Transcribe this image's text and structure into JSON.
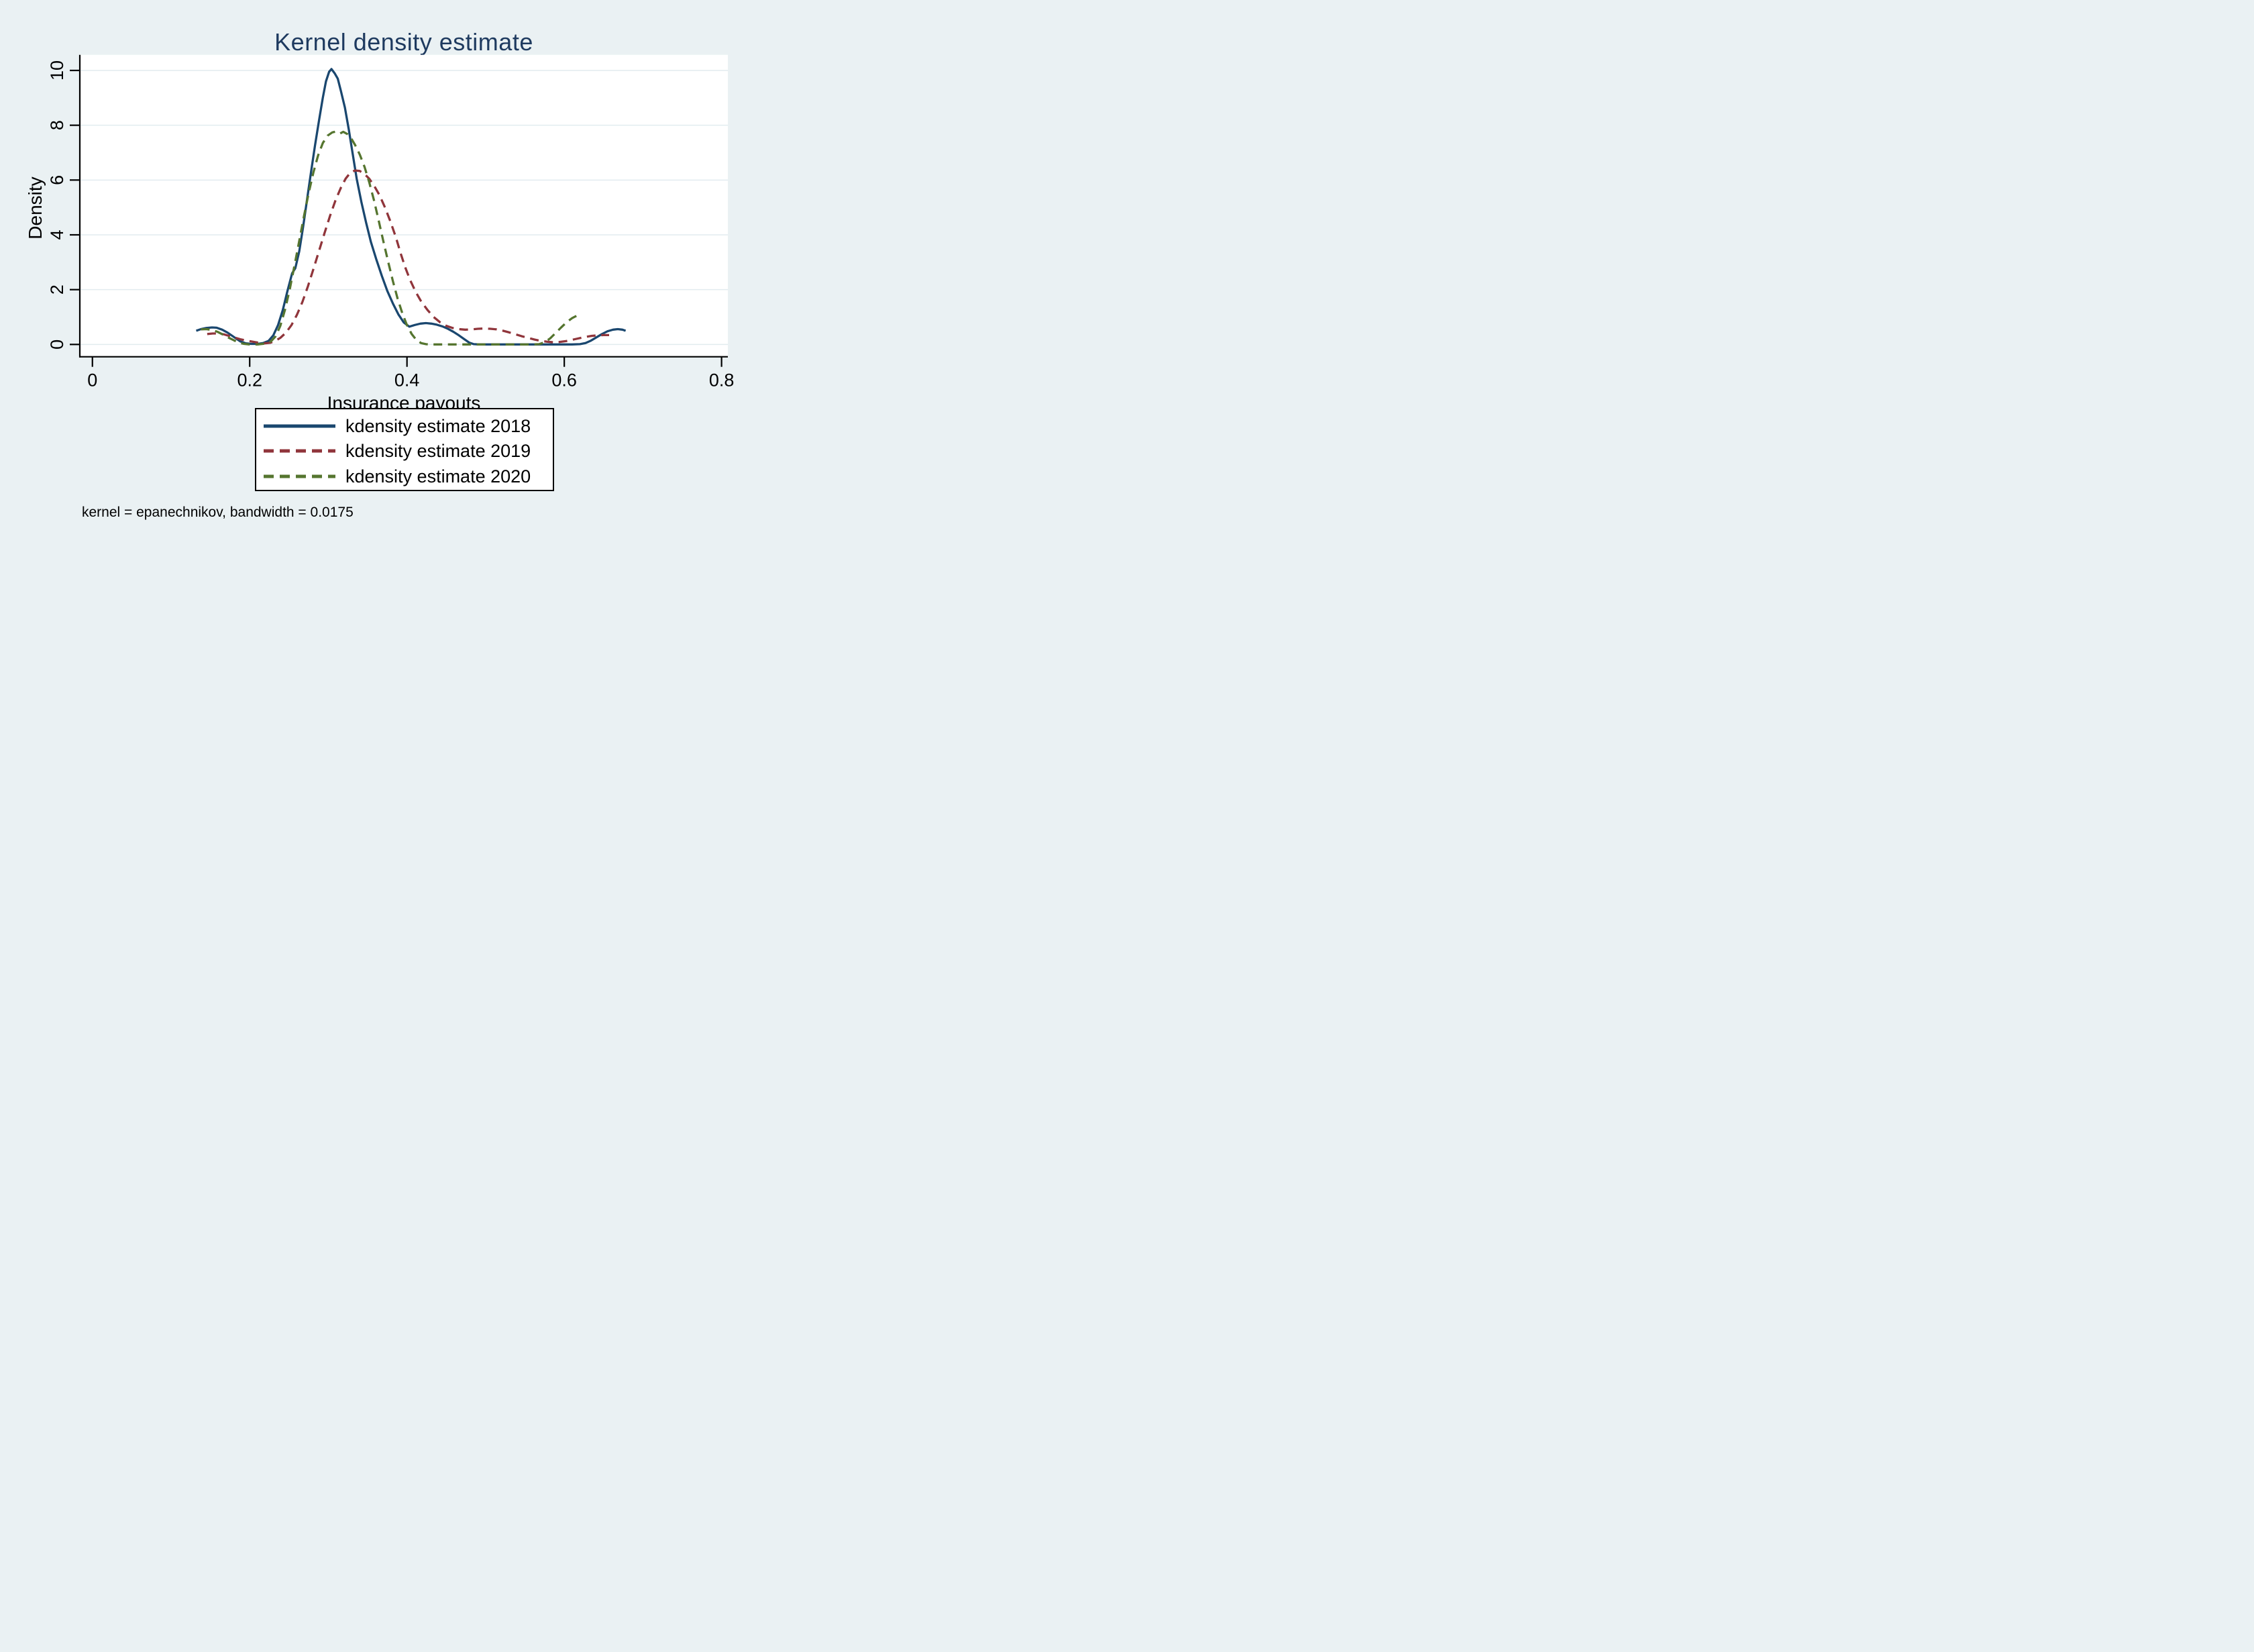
{
  "title": {
    "text": "Kernel density estimate"
  },
  "x_axis": {
    "title": "Insurance payouts",
    "tick_labels": [
      "0",
      "0.2",
      "0.4",
      "0.6",
      "0.8"
    ],
    "tick_values": [
      0,
      0.2,
      0.4,
      0.6,
      0.8
    ]
  },
  "y_axis": {
    "title": "Density",
    "tick_labels": [
      "0",
      "2",
      "4",
      "6",
      "8",
      "10"
    ],
    "tick_values": [
      0,
      2,
      4,
      6,
      8,
      10
    ]
  },
  "legend": {
    "items": [
      {
        "label": "kdensity estimate 2018",
        "series": "kdensity_2018"
      },
      {
        "label": "kdensity estimate 2019",
        "series": "kdensity_2019"
      },
      {
        "label": "kdensity estimate 2020",
        "series": "kdensity_2020"
      }
    ]
  },
  "note": "kernel = epanechnikov, bandwidth = 0.0175",
  "colors": {
    "background": "#eaf1f3",
    "plot_background": "#ffffff",
    "gridline": "#e2ecef",
    "axis": "#000000",
    "title_text": "#1e3a5f",
    "navy": "#1a476f",
    "maroon": "#90353b",
    "olive": "#55752f"
  },
  "chart_data": {
    "type": "line",
    "title": "Kernel density estimate",
    "xlabel": "Insurance payouts",
    "ylabel": "Density",
    "xlim": [
      -0.016,
      0.808
    ],
    "ylim": [
      -0.45,
      10.57
    ],
    "x_ticks": [
      0,
      0.2,
      0.4,
      0.6,
      0.8
    ],
    "y_ticks": [
      0,
      2,
      4,
      6,
      8,
      10
    ],
    "grid": "horizontal",
    "legend_position": "below",
    "kernel": "epanechnikov",
    "bandwidth": 0.0175,
    "series": [
      {
        "name": "kdensity estimate 2018",
        "color": "#1a476f",
        "style": "solid",
        "points": [
          [
            0.132,
            0.5
          ],
          [
            0.138,
            0.56
          ],
          [
            0.145,
            0.6
          ],
          [
            0.152,
            0.62
          ],
          [
            0.158,
            0.61
          ],
          [
            0.165,
            0.54
          ],
          [
            0.172,
            0.43
          ],
          [
            0.18,
            0.27
          ],
          [
            0.188,
            0.11
          ],
          [
            0.195,
            0.04
          ],
          [
            0.202,
            0.02
          ],
          [
            0.21,
            0.02
          ],
          [
            0.217,
            0.05
          ],
          [
            0.224,
            0.13
          ],
          [
            0.23,
            0.33
          ],
          [
            0.236,
            0.7
          ],
          [
            0.242,
            1.25
          ],
          [
            0.248,
            1.95
          ],
          [
            0.254,
            2.6
          ],
          [
            0.258,
            2.78
          ],
          [
            0.263,
            3.4
          ],
          [
            0.268,
            4.3
          ],
          [
            0.273,
            5.3
          ],
          [
            0.278,
            6.3
          ],
          [
            0.283,
            7.25
          ],
          [
            0.288,
            8.15
          ],
          [
            0.293,
            9.0
          ],
          [
            0.297,
            9.6
          ],
          [
            0.301,
            9.95
          ],
          [
            0.304,
            10.05
          ],
          [
            0.308,
            9.9
          ],
          [
            0.312,
            9.7
          ],
          [
            0.316,
            9.25
          ],
          [
            0.321,
            8.65
          ],
          [
            0.326,
            7.85
          ],
          [
            0.331,
            6.95
          ],
          [
            0.336,
            6.05
          ],
          [
            0.342,
            5.2
          ],
          [
            0.348,
            4.45
          ],
          [
            0.354,
            3.75
          ],
          [
            0.361,
            3.1
          ],
          [
            0.368,
            2.5
          ],
          [
            0.375,
            1.95
          ],
          [
            0.382,
            1.5
          ],
          [
            0.389,
            1.1
          ],
          [
            0.396,
            0.8
          ],
          [
            0.403,
            0.65
          ],
          [
            0.41,
            0.71
          ],
          [
            0.417,
            0.76
          ],
          [
            0.424,
            0.78
          ],
          [
            0.431,
            0.76
          ],
          [
            0.438,
            0.72
          ],
          [
            0.445,
            0.66
          ],
          [
            0.452,
            0.57
          ],
          [
            0.459,
            0.46
          ],
          [
            0.466,
            0.33
          ],
          [
            0.473,
            0.19
          ],
          [
            0.479,
            0.07
          ],
          [
            0.485,
            0.01
          ],
          [
            0.492,
            0.0
          ],
          [
            0.52,
            0.0
          ],
          [
            0.55,
            0.0
          ],
          [
            0.58,
            0.0
          ],
          [
            0.61,
            0.0
          ],
          [
            0.62,
            0.01
          ],
          [
            0.627,
            0.05
          ],
          [
            0.634,
            0.14
          ],
          [
            0.641,
            0.26
          ],
          [
            0.648,
            0.38
          ],
          [
            0.655,
            0.48
          ],
          [
            0.662,
            0.54
          ],
          [
            0.668,
            0.56
          ],
          [
            0.674,
            0.54
          ],
          [
            0.678,
            0.5
          ]
        ]
      },
      {
        "name": "kdensity estimate 2019",
        "color": "#90353b",
        "style": "dashed",
        "points": [
          [
            0.146,
            0.38
          ],
          [
            0.153,
            0.4
          ],
          [
            0.16,
            0.4
          ],
          [
            0.167,
            0.37
          ],
          [
            0.174,
            0.31
          ],
          [
            0.181,
            0.25
          ],
          [
            0.188,
            0.19
          ],
          [
            0.196,
            0.14
          ],
          [
            0.204,
            0.1
          ],
          [
            0.212,
            0.06
          ],
          [
            0.219,
            0.04
          ],
          [
            0.226,
            0.06
          ],
          [
            0.232,
            0.12
          ],
          [
            0.239,
            0.24
          ],
          [
            0.246,
            0.43
          ],
          [
            0.253,
            0.7
          ],
          [
            0.26,
            1.08
          ],
          [
            0.267,
            1.55
          ],
          [
            0.274,
            2.12
          ],
          [
            0.281,
            2.75
          ],
          [
            0.288,
            3.4
          ],
          [
            0.295,
            4.05
          ],
          [
            0.302,
            4.68
          ],
          [
            0.309,
            5.25
          ],
          [
            0.316,
            5.72
          ],
          [
            0.322,
            6.05
          ],
          [
            0.328,
            6.27
          ],
          [
            0.334,
            6.35
          ],
          [
            0.34,
            6.33
          ],
          [
            0.346,
            6.22
          ],
          [
            0.352,
            6.05
          ],
          [
            0.358,
            5.8
          ],
          [
            0.365,
            5.45
          ],
          [
            0.372,
            5.0
          ],
          [
            0.379,
            4.48
          ],
          [
            0.386,
            3.9
          ],
          [
            0.392,
            3.32
          ],
          [
            0.398,
            2.8
          ],
          [
            0.404,
            2.35
          ],
          [
            0.411,
            1.92
          ],
          [
            0.418,
            1.57
          ],
          [
            0.426,
            1.26
          ],
          [
            0.434,
            1.0
          ],
          [
            0.442,
            0.81
          ],
          [
            0.45,
            0.68
          ],
          [
            0.458,
            0.6
          ],
          [
            0.466,
            0.56
          ],
          [
            0.474,
            0.54
          ],
          [
            0.482,
            0.55
          ],
          [
            0.49,
            0.57
          ],
          [
            0.498,
            0.58
          ],
          [
            0.506,
            0.57
          ],
          [
            0.514,
            0.55
          ],
          [
            0.522,
            0.5
          ],
          [
            0.53,
            0.44
          ],
          [
            0.538,
            0.37
          ],
          [
            0.546,
            0.3
          ],
          [
            0.554,
            0.24
          ],
          [
            0.562,
            0.18
          ],
          [
            0.57,
            0.13
          ],
          [
            0.578,
            0.1
          ],
          [
            0.586,
            0.08
          ],
          [
            0.594,
            0.09
          ],
          [
            0.602,
            0.12
          ],
          [
            0.61,
            0.17
          ],
          [
            0.618,
            0.22
          ],
          [
            0.626,
            0.27
          ],
          [
            0.634,
            0.31
          ],
          [
            0.642,
            0.33
          ],
          [
            0.65,
            0.34
          ],
          [
            0.657,
            0.34
          ]
        ]
      },
      {
        "name": "kdensity estimate 2020",
        "color": "#55752f",
        "style": "dashed",
        "points": [
          [
            0.138,
            0.55
          ],
          [
            0.145,
            0.56
          ],
          [
            0.152,
            0.53
          ],
          [
            0.159,
            0.46
          ],
          [
            0.166,
            0.36
          ],
          [
            0.173,
            0.25
          ],
          [
            0.18,
            0.15
          ],
          [
            0.187,
            0.06
          ],
          [
            0.193,
            0.02
          ],
          [
            0.2,
            0.0
          ],
          [
            0.21,
            0.0
          ],
          [
            0.22,
            0.03
          ],
          [
            0.227,
            0.11
          ],
          [
            0.233,
            0.3
          ],
          [
            0.239,
            0.68
          ],
          [
            0.245,
            1.28
          ],
          [
            0.251,
            2.02
          ],
          [
            0.257,
            2.88
          ],
          [
            0.263,
            3.78
          ],
          [
            0.269,
            4.68
          ],
          [
            0.275,
            5.52
          ],
          [
            0.281,
            6.28
          ],
          [
            0.287,
            6.9
          ],
          [
            0.293,
            7.35
          ],
          [
            0.299,
            7.62
          ],
          [
            0.305,
            7.74
          ],
          [
            0.31,
            7.77
          ],
          [
            0.315,
            7.7
          ],
          [
            0.319,
            7.76
          ],
          [
            0.324,
            7.68
          ],
          [
            0.329,
            7.52
          ],
          [
            0.334,
            7.28
          ],
          [
            0.34,
            6.93
          ],
          [
            0.346,
            6.48
          ],
          [
            0.352,
            5.92
          ],
          [
            0.358,
            5.26
          ],
          [
            0.364,
            4.52
          ],
          [
            0.37,
            3.76
          ],
          [
            0.376,
            3.02
          ],
          [
            0.382,
            2.32
          ],
          [
            0.388,
            1.68
          ],
          [
            0.394,
            1.14
          ],
          [
            0.4,
            0.7
          ],
          [
            0.406,
            0.38
          ],
          [
            0.412,
            0.16
          ],
          [
            0.418,
            0.05
          ],
          [
            0.424,
            0.01
          ],
          [
            0.43,
            0.0
          ],
          [
            0.46,
            0.0
          ],
          [
            0.5,
            0.0
          ],
          [
            0.53,
            0.0
          ],
          [
            0.56,
            0.0
          ],
          [
            0.568,
            0.01
          ],
          [
            0.575,
            0.08
          ],
          [
            0.582,
            0.22
          ],
          [
            0.589,
            0.42
          ],
          [
            0.596,
            0.62
          ],
          [
            0.603,
            0.81
          ],
          [
            0.61,
            0.96
          ],
          [
            0.616,
            1.05
          ],
          [
            0.622,
            1.08
          ]
        ]
      }
    ]
  }
}
